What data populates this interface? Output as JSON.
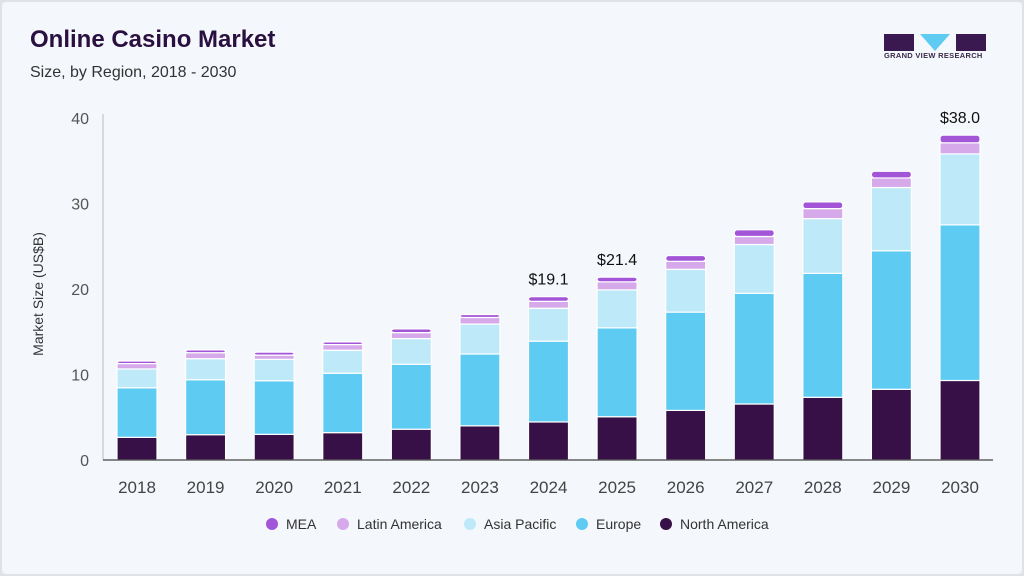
{
  "header": {
    "title": "Online Casino Market",
    "subtitle": "Size, by Region, 2018 - 2030",
    "logo_text": "GRAND VIEW RESEARCH"
  },
  "colors": {
    "North America": "#371047",
    "Europe": "#5ecbf3",
    "Asia Pacific": "#bde9f8",
    "Latin America": "#d5a9ea",
    "MEA": "#a355d8"
  },
  "chart_data": {
    "type": "bar",
    "stacked": true,
    "title": "Online Casino Market",
    "subtitle": "Size, by Region, 2018 - 2030",
    "xlabel": "",
    "ylabel": "Market Size (US$B)",
    "ylim": [
      0,
      40
    ],
    "yticks": [
      "0",
      "10",
      "20",
      "30",
      "40"
    ],
    "categories": [
      "2018",
      "2019",
      "2020",
      "2021",
      "2022",
      "2023",
      "2024",
      "2025",
      "2026",
      "2027",
      "2028",
      "2029",
      "2030"
    ],
    "series": [
      {
        "name": "North America",
        "values": [
          2.65,
          2.96,
          3.0,
          3.2,
          3.6,
          4.0,
          4.45,
          5.06,
          5.8,
          6.55,
          7.33,
          8.27,
          9.3
        ]
      },
      {
        "name": "Europe",
        "values": [
          5.8,
          6.43,
          6.27,
          6.95,
          7.6,
          8.4,
          9.45,
          10.4,
          11.5,
          12.95,
          14.5,
          16.2,
          18.2
        ]
      },
      {
        "name": "Asia Pacific",
        "values": [
          2.2,
          2.46,
          2.5,
          2.69,
          3.0,
          3.5,
          3.85,
          4.44,
          5.0,
          5.7,
          6.4,
          7.4,
          8.3
        ]
      },
      {
        "name": "Latin America",
        "values": [
          0.63,
          0.7,
          0.5,
          0.66,
          0.7,
          0.77,
          0.8,
          0.94,
          0.94,
          0.94,
          1.17,
          1.12,
          1.29
        ]
      },
      {
        "name": "MEA",
        "values": [
          0.3,
          0.32,
          0.35,
          0.32,
          0.43,
          0.35,
          0.55,
          0.55,
          0.67,
          0.78,
          0.78,
          0.78,
          0.9
        ]
      }
    ],
    "data_labels": [
      {
        "category": "2024",
        "text": "$19.1"
      },
      {
        "category": "2025",
        "text": "$21.4"
      },
      {
        "category": "2030",
        "text": "$38.0"
      }
    ],
    "legend": {
      "position": "bottom",
      "entries": [
        "MEA",
        "Latin America",
        "Asia Pacific",
        "Europe",
        "North America"
      ]
    },
    "grid": false
  }
}
